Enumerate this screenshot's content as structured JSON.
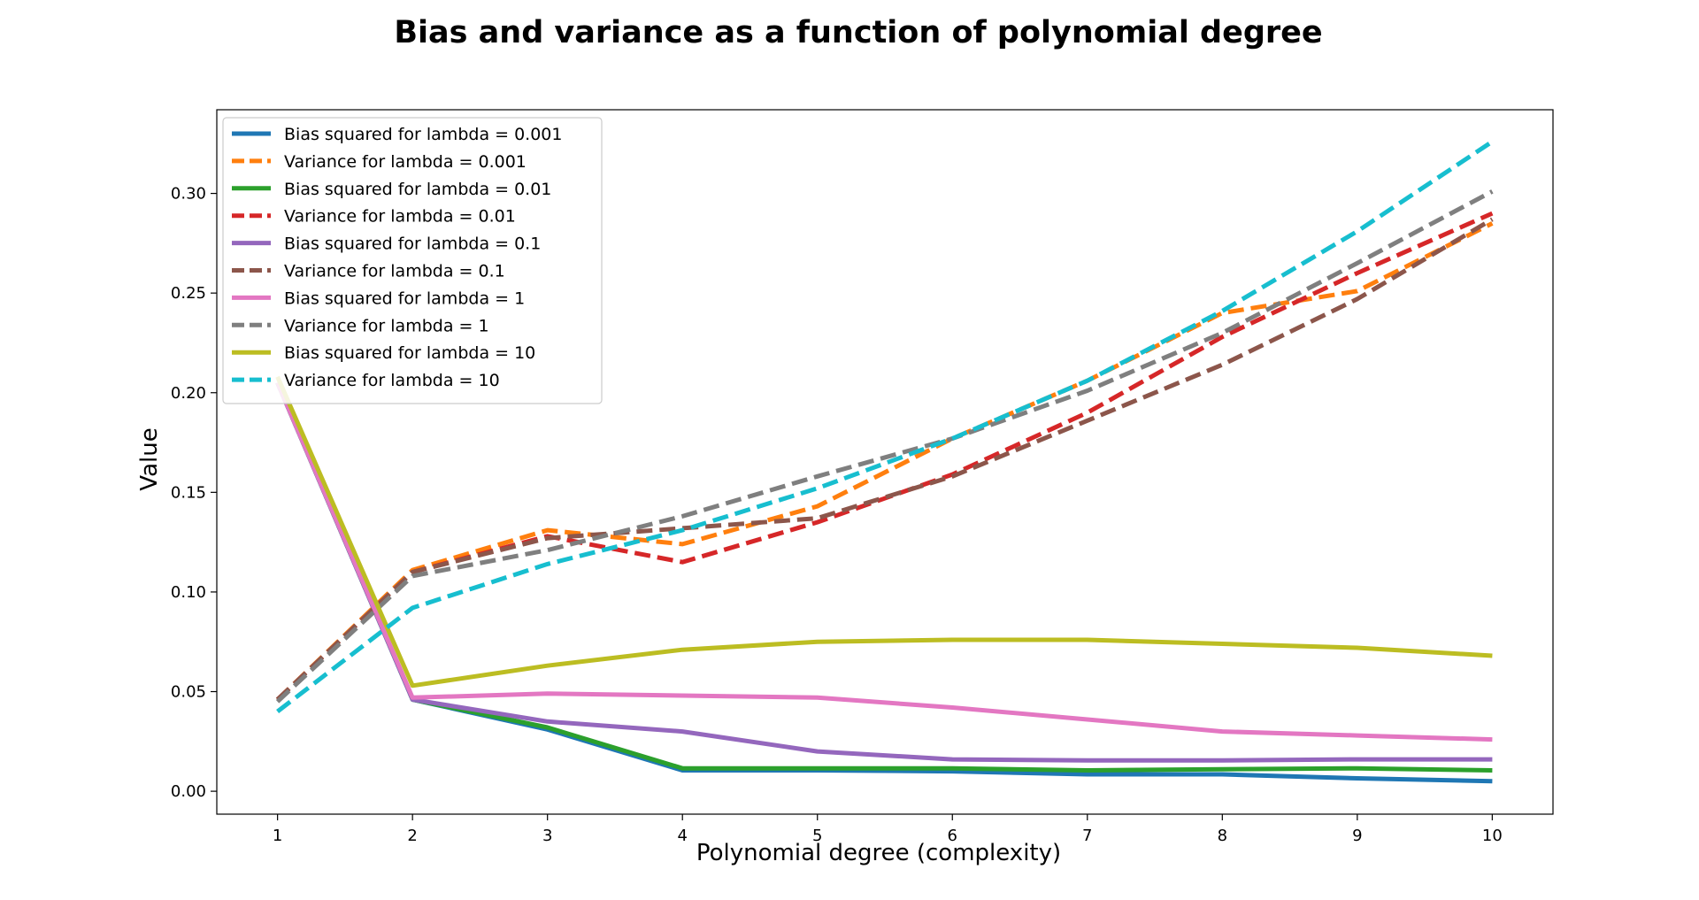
{
  "chart_data": {
    "type": "line",
    "title": "Bias and variance as a function of polynomial degree",
    "xlabel": "Polynomial degree (complexity)",
    "ylabel": "Value",
    "xlim": [
      0.55,
      10.45
    ],
    "ylim": [
      -0.0115,
      0.342
    ],
    "xticks": [
      1,
      2,
      3,
      4,
      5,
      6,
      7,
      8,
      9,
      10
    ],
    "xtick_labels": [
      "1",
      "2",
      "3",
      "4",
      "5",
      "6",
      "7",
      "8",
      "9",
      "10"
    ],
    "yticks": [
      0.0,
      0.05,
      0.1,
      0.15,
      0.2,
      0.25,
      0.3
    ],
    "ytick_labels": [
      "0.00",
      "0.05",
      "0.10",
      "0.15",
      "0.20",
      "0.25",
      "0.30"
    ],
    "grid": false,
    "legend_position": "top-left",
    "x": [
      1,
      2,
      3,
      4,
      5,
      6,
      7,
      8,
      9,
      10
    ],
    "series": [
      {
        "name": "Bias squared for lambda = 0.001",
        "color": "#1f77b4",
        "dash": false,
        "values": [
          0.205,
          0.046,
          0.031,
          0.0105,
          0.0105,
          0.01,
          0.0085,
          0.0085,
          0.0065,
          0.005
        ]
      },
      {
        "name": "Variance for lambda = 0.001",
        "color": "#ff7f0e",
        "dash": true,
        "values": [
          0.046,
          0.111,
          0.131,
          0.124,
          0.143,
          0.177,
          0.206,
          0.24,
          0.251,
          0.285
        ]
      },
      {
        "name": "Bias squared for lambda = 0.01",
        "color": "#2ca02c",
        "dash": false,
        "values": [
          0.205,
          0.046,
          0.032,
          0.0115,
          0.0115,
          0.0115,
          0.0105,
          0.011,
          0.0115,
          0.0105
        ]
      },
      {
        "name": "Variance for lambda = 0.01",
        "color": "#d62728",
        "dash": true,
        "values": [
          0.046,
          0.11,
          0.128,
          0.115,
          0.135,
          0.159,
          0.19,
          0.228,
          0.26,
          0.29
        ]
      },
      {
        "name": "Bias squared for lambda = 0.1",
        "color": "#9467bd",
        "dash": false,
        "values": [
          0.205,
          0.046,
          0.035,
          0.03,
          0.02,
          0.016,
          0.0155,
          0.0155,
          0.016,
          0.016
        ]
      },
      {
        "name": "Variance for lambda = 0.1",
        "color": "#8c564b",
        "dash": true,
        "values": [
          0.046,
          0.11,
          0.127,
          0.132,
          0.137,
          0.158,
          0.186,
          0.214,
          0.247,
          0.287
        ]
      },
      {
        "name": "Bias squared for lambda = 1",
        "color": "#e377c2",
        "dash": false,
        "values": [
          0.205,
          0.047,
          0.049,
          0.048,
          0.047,
          0.042,
          0.036,
          0.03,
          0.028,
          0.026
        ]
      },
      {
        "name": "Variance for lambda = 1",
        "color": "#7f7f7f",
        "dash": true,
        "values": [
          0.045,
          0.108,
          0.121,
          0.138,
          0.158,
          0.177,
          0.201,
          0.23,
          0.265,
          0.301
        ]
      },
      {
        "name": "Bias squared for lambda = 10",
        "color": "#bcbd22",
        "dash": false,
        "values": [
          0.208,
          0.053,
          0.063,
          0.071,
          0.075,
          0.076,
          0.076,
          0.074,
          0.072,
          0.068
        ]
      },
      {
        "name": "Variance for lambda = 10",
        "color": "#17becf",
        "dash": true,
        "values": [
          0.04,
          0.092,
          0.114,
          0.131,
          0.152,
          0.177,
          0.206,
          0.241,
          0.281,
          0.326
        ]
      }
    ]
  }
}
